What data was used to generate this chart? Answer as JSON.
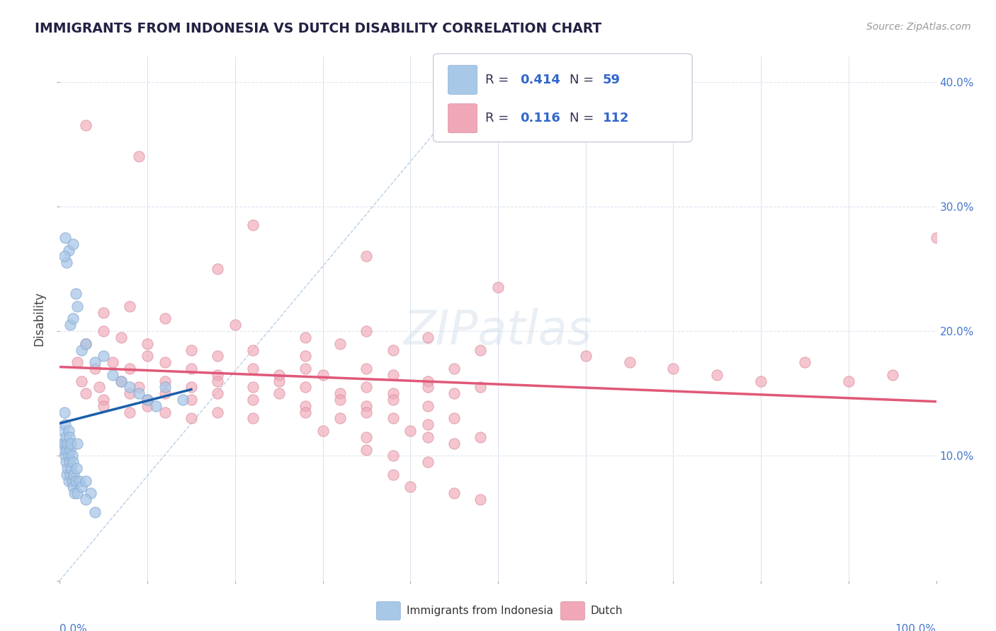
{
  "title": "IMMIGRANTS FROM INDONESIA VS DUTCH DISABILITY CORRELATION CHART",
  "source": "Source: ZipAtlas.com",
  "ylabel": "Disability",
  "legend_label1": "Immigrants from Indonesia",
  "legend_label2": "Dutch",
  "blue_color": "#a8c8e8",
  "blue_edge_color": "#88a8d0",
  "pink_color": "#f0a8b8",
  "pink_edge_color": "#d88898",
  "blue_line_color": "#1a5faa",
  "pink_line_color": "#e05878",
  "dash_line_color": "#aac4e0",
  "bg_color": "#ffffff",
  "grid_color": "#dde5f0",
  "watermark": "ZIPatlas",
  "watermark_color": "#c8d8e8",
  "blue_scatter": [
    [
      0.2,
      11.0
    ],
    [
      0.3,
      10.5
    ],
    [
      0.4,
      12.0
    ],
    [
      0.5,
      13.5
    ],
    [
      0.5,
      11.0
    ],
    [
      0.6,
      10.0
    ],
    [
      0.6,
      12.5
    ],
    [
      0.7,
      9.5
    ],
    [
      0.7,
      11.5
    ],
    [
      0.8,
      8.5
    ],
    [
      0.8,
      10.5
    ],
    [
      0.9,
      9.0
    ],
    [
      0.9,
      11.0
    ],
    [
      1.0,
      8.0
    ],
    [
      1.0,
      10.0
    ],
    [
      1.0,
      12.0
    ],
    [
      1.1,
      9.5
    ],
    [
      1.1,
      11.5
    ],
    [
      1.2,
      8.5
    ],
    [
      1.2,
      10.5
    ],
    [
      1.3,
      9.0
    ],
    [
      1.3,
      11.0
    ],
    [
      1.4,
      8.0
    ],
    [
      1.4,
      10.0
    ],
    [
      1.5,
      7.5
    ],
    [
      1.5,
      9.5
    ],
    [
      1.6,
      8.5
    ],
    [
      1.7,
      7.0
    ],
    [
      1.8,
      8.0
    ],
    [
      1.9,
      9.0
    ],
    [
      2.0,
      7.0
    ],
    [
      2.0,
      11.0
    ],
    [
      2.2,
      8.0
    ],
    [
      2.5,
      7.5
    ],
    [
      3.0,
      8.0
    ],
    [
      3.5,
      7.0
    ],
    [
      1.0,
      26.5
    ],
    [
      1.5,
      27.0
    ],
    [
      0.8,
      25.5
    ],
    [
      2.0,
      22.0
    ],
    [
      1.8,
      23.0
    ],
    [
      1.2,
      20.5
    ],
    [
      1.5,
      21.0
    ],
    [
      0.5,
      26.0
    ],
    [
      0.6,
      27.5
    ],
    [
      2.5,
      18.5
    ],
    [
      3.0,
      19.0
    ],
    [
      4.0,
      17.5
    ],
    [
      5.0,
      18.0
    ],
    [
      6.0,
      16.5
    ],
    [
      7.0,
      16.0
    ],
    [
      8.0,
      15.5
    ],
    [
      9.0,
      15.0
    ],
    [
      10.0,
      14.5
    ],
    [
      11.0,
      14.0
    ],
    [
      12.0,
      15.5
    ],
    [
      14.0,
      14.5
    ],
    [
      3.0,
      6.5
    ],
    [
      4.0,
      5.5
    ]
  ],
  "pink_scatter": [
    [
      3.0,
      36.5
    ],
    [
      9.0,
      34.0
    ],
    [
      22.0,
      28.5
    ],
    [
      35.0,
      26.0
    ],
    [
      18.0,
      25.0
    ],
    [
      50.0,
      23.5
    ],
    [
      5.0,
      21.5
    ],
    [
      8.0,
      22.0
    ],
    [
      12.0,
      21.0
    ],
    [
      20.0,
      20.5
    ],
    [
      28.0,
      19.5
    ],
    [
      35.0,
      20.0
    ],
    [
      42.0,
      19.5
    ],
    [
      48.0,
      18.5
    ],
    [
      3.0,
      19.0
    ],
    [
      5.0,
      20.0
    ],
    [
      7.0,
      19.5
    ],
    [
      10.0,
      19.0
    ],
    [
      15.0,
      18.5
    ],
    [
      18.0,
      18.0
    ],
    [
      22.0,
      18.5
    ],
    [
      28.0,
      18.0
    ],
    [
      32.0,
      19.0
    ],
    [
      38.0,
      18.5
    ],
    [
      2.0,
      17.5
    ],
    [
      4.0,
      17.0
    ],
    [
      6.0,
      17.5
    ],
    [
      8.0,
      17.0
    ],
    [
      10.0,
      18.0
    ],
    [
      12.0,
      17.5
    ],
    [
      15.0,
      17.0
    ],
    [
      18.0,
      16.5
    ],
    [
      22.0,
      17.0
    ],
    [
      25.0,
      16.5
    ],
    [
      28.0,
      17.0
    ],
    [
      30.0,
      16.5
    ],
    [
      35.0,
      17.0
    ],
    [
      38.0,
      16.5
    ],
    [
      42.0,
      16.0
    ],
    [
      45.0,
      17.0
    ],
    [
      2.5,
      16.0
    ],
    [
      4.5,
      15.5
    ],
    [
      7.0,
      16.0
    ],
    [
      9.0,
      15.5
    ],
    [
      12.0,
      16.0
    ],
    [
      15.0,
      15.5
    ],
    [
      18.0,
      16.0
    ],
    [
      22.0,
      15.5
    ],
    [
      25.0,
      16.0
    ],
    [
      28.0,
      15.5
    ],
    [
      32.0,
      15.0
    ],
    [
      35.0,
      15.5
    ],
    [
      38.0,
      15.0
    ],
    [
      42.0,
      15.5
    ],
    [
      45.0,
      15.0
    ],
    [
      48.0,
      15.5
    ],
    [
      3.0,
      15.0
    ],
    [
      5.0,
      14.5
    ],
    [
      8.0,
      15.0
    ],
    [
      10.0,
      14.5
    ],
    [
      12.0,
      15.0
    ],
    [
      15.0,
      14.5
    ],
    [
      18.0,
      15.0
    ],
    [
      22.0,
      14.5
    ],
    [
      25.0,
      15.0
    ],
    [
      28.0,
      14.0
    ],
    [
      32.0,
      14.5
    ],
    [
      35.0,
      14.0
    ],
    [
      38.0,
      14.5
    ],
    [
      42.0,
      14.0
    ],
    [
      5.0,
      14.0
    ],
    [
      8.0,
      13.5
    ],
    [
      10.0,
      14.0
    ],
    [
      12.0,
      13.5
    ],
    [
      15.0,
      13.0
    ],
    [
      18.0,
      13.5
    ],
    [
      22.0,
      13.0
    ],
    [
      28.0,
      13.5
    ],
    [
      32.0,
      13.0
    ],
    [
      35.0,
      13.5
    ],
    [
      38.0,
      13.0
    ],
    [
      42.0,
      12.5
    ],
    [
      45.0,
      13.0
    ],
    [
      30.0,
      12.0
    ],
    [
      35.0,
      11.5
    ],
    [
      40.0,
      12.0
    ],
    [
      42.0,
      11.5
    ],
    [
      45.0,
      11.0
    ],
    [
      48.0,
      11.5
    ],
    [
      35.0,
      10.5
    ],
    [
      38.0,
      10.0
    ],
    [
      42.0,
      9.5
    ],
    [
      38.0,
      8.5
    ],
    [
      40.0,
      7.5
    ],
    [
      45.0,
      7.0
    ],
    [
      48.0,
      6.5
    ],
    [
      60.0,
      18.0
    ],
    [
      65.0,
      17.5
    ],
    [
      70.0,
      17.0
    ],
    [
      75.0,
      16.5
    ],
    [
      80.0,
      16.0
    ],
    [
      85.0,
      17.5
    ],
    [
      90.0,
      16.0
    ],
    [
      95.0,
      16.5
    ],
    [
      100.0,
      27.5
    ]
  ],
  "xlim": [
    0,
    100
  ],
  "ylim": [
    0,
    42
  ],
  "yticks": [
    0,
    10,
    20,
    30,
    40
  ],
  "ytick_labels_pct": [
    "0%",
    "10.0%",
    "20.0%",
    "30.0%",
    "40.0%"
  ]
}
